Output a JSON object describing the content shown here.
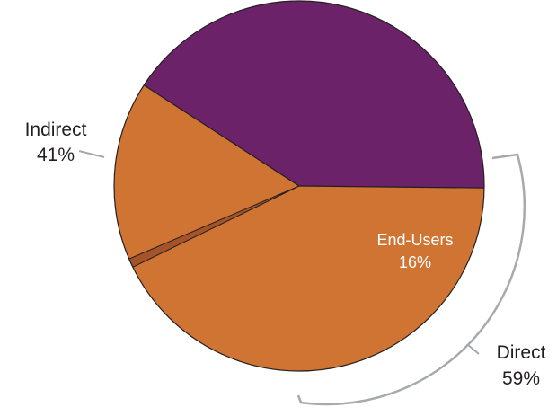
{
  "chart_data": {
    "type": "pie",
    "title": "",
    "slices": [
      {
        "label": "Indirect",
        "value_label": "41%",
        "value": 41,
        "color": "#6b2268",
        "labeled": true
      },
      {
        "label": "",
        "value_label": "",
        "value": 43,
        "color": "#cf7432",
        "labeled": false
      },
      {
        "label": "End-Users",
        "value_label": "16%",
        "value": 16,
        "color": "#cf7432",
        "labeled": true
      }
    ],
    "groups": [
      {
        "label": "Direct",
        "value_label": "59%",
        "value": 59
      }
    ],
    "colors": {
      "indirect": "#6b2268",
      "direct": "#cf7432",
      "separator": "#a45428",
      "outline": "#231f20",
      "bracket": "#a7a9ac"
    },
    "legend": "none"
  }
}
